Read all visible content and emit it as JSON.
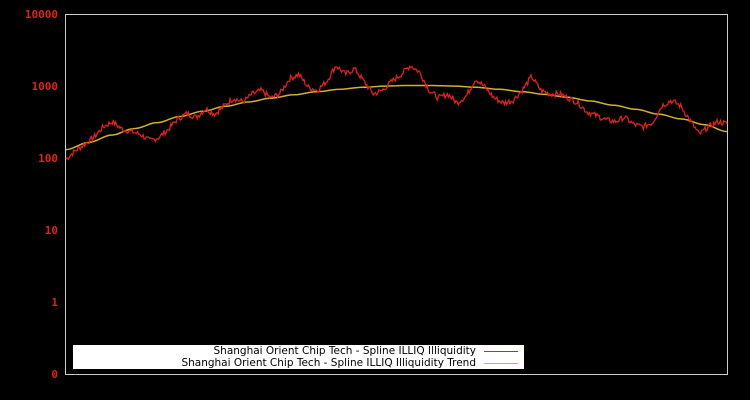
{
  "chart_data": {
    "type": "line",
    "title": "",
    "xlabel": "",
    "ylabel": "",
    "yscale": "log",
    "ylim": [
      0,
      10000
    ],
    "y_ticks": [
      "10000",
      "1000",
      "100",
      "10",
      "1",
      "0"
    ],
    "grid": false,
    "legend_position": "lower-left-inside",
    "series": [
      {
        "name": "Shanghai Orient Chip Tech - Spline ILLIQ Illiquidity",
        "color": "#dd2222",
        "values_approx": [
          100,
          130,
          160,
          200,
          280,
          330,
          260,
          240,
          220,
          180,
          200,
          260,
          360,
          430,
          380,
          500,
          420,
          550,
          700,
          620,
          800,
          900,
          700,
          820,
          1300,
          1500,
          1000,
          900,
          1200,
          2000,
          1500,
          1800,
          1200,
          800,
          900,
          1200,
          1500,
          2000,
          1600,
          900,
          700,
          800,
          600,
          750,
          1300,
          1000,
          700,
          600,
          650,
          900,
          1400,
          900,
          800,
          800,
          700,
          600,
          450,
          400,
          350,
          330,
          380,
          300,
          280,
          320,
          550,
          650,
          550,
          350,
          220,
          280,
          330,
          310
        ]
      },
      {
        "name": "Shanghai Orient Chip Tech - Spline ILLIQ Illiquidity Trend",
        "color": "#d4b030",
        "values_approx": [
          135,
          170,
          215,
          265,
          320,
          390,
          460,
          540,
          620,
          700,
          780,
          860,
          930,
          990,
          1030,
          1050,
          1050,
          1030,
          990,
          930,
          860,
          790,
          720,
          640,
          560,
          490,
          420,
          360,
          300,
          240
        ]
      }
    ]
  },
  "legend": {
    "items": [
      {
        "label": "Shanghai Orient Chip Tech - Spline ILLIQ Illiquidity",
        "color": "#dd2222"
      },
      {
        "label": "Shanghai Orient Chip Tech - Spline ILLIQ Illiquidity Trend",
        "color": "#d4b030"
      }
    ]
  },
  "axis": {
    "y_labels": [
      "10000",
      "1000",
      "100",
      "10",
      "1",
      "0"
    ]
  }
}
